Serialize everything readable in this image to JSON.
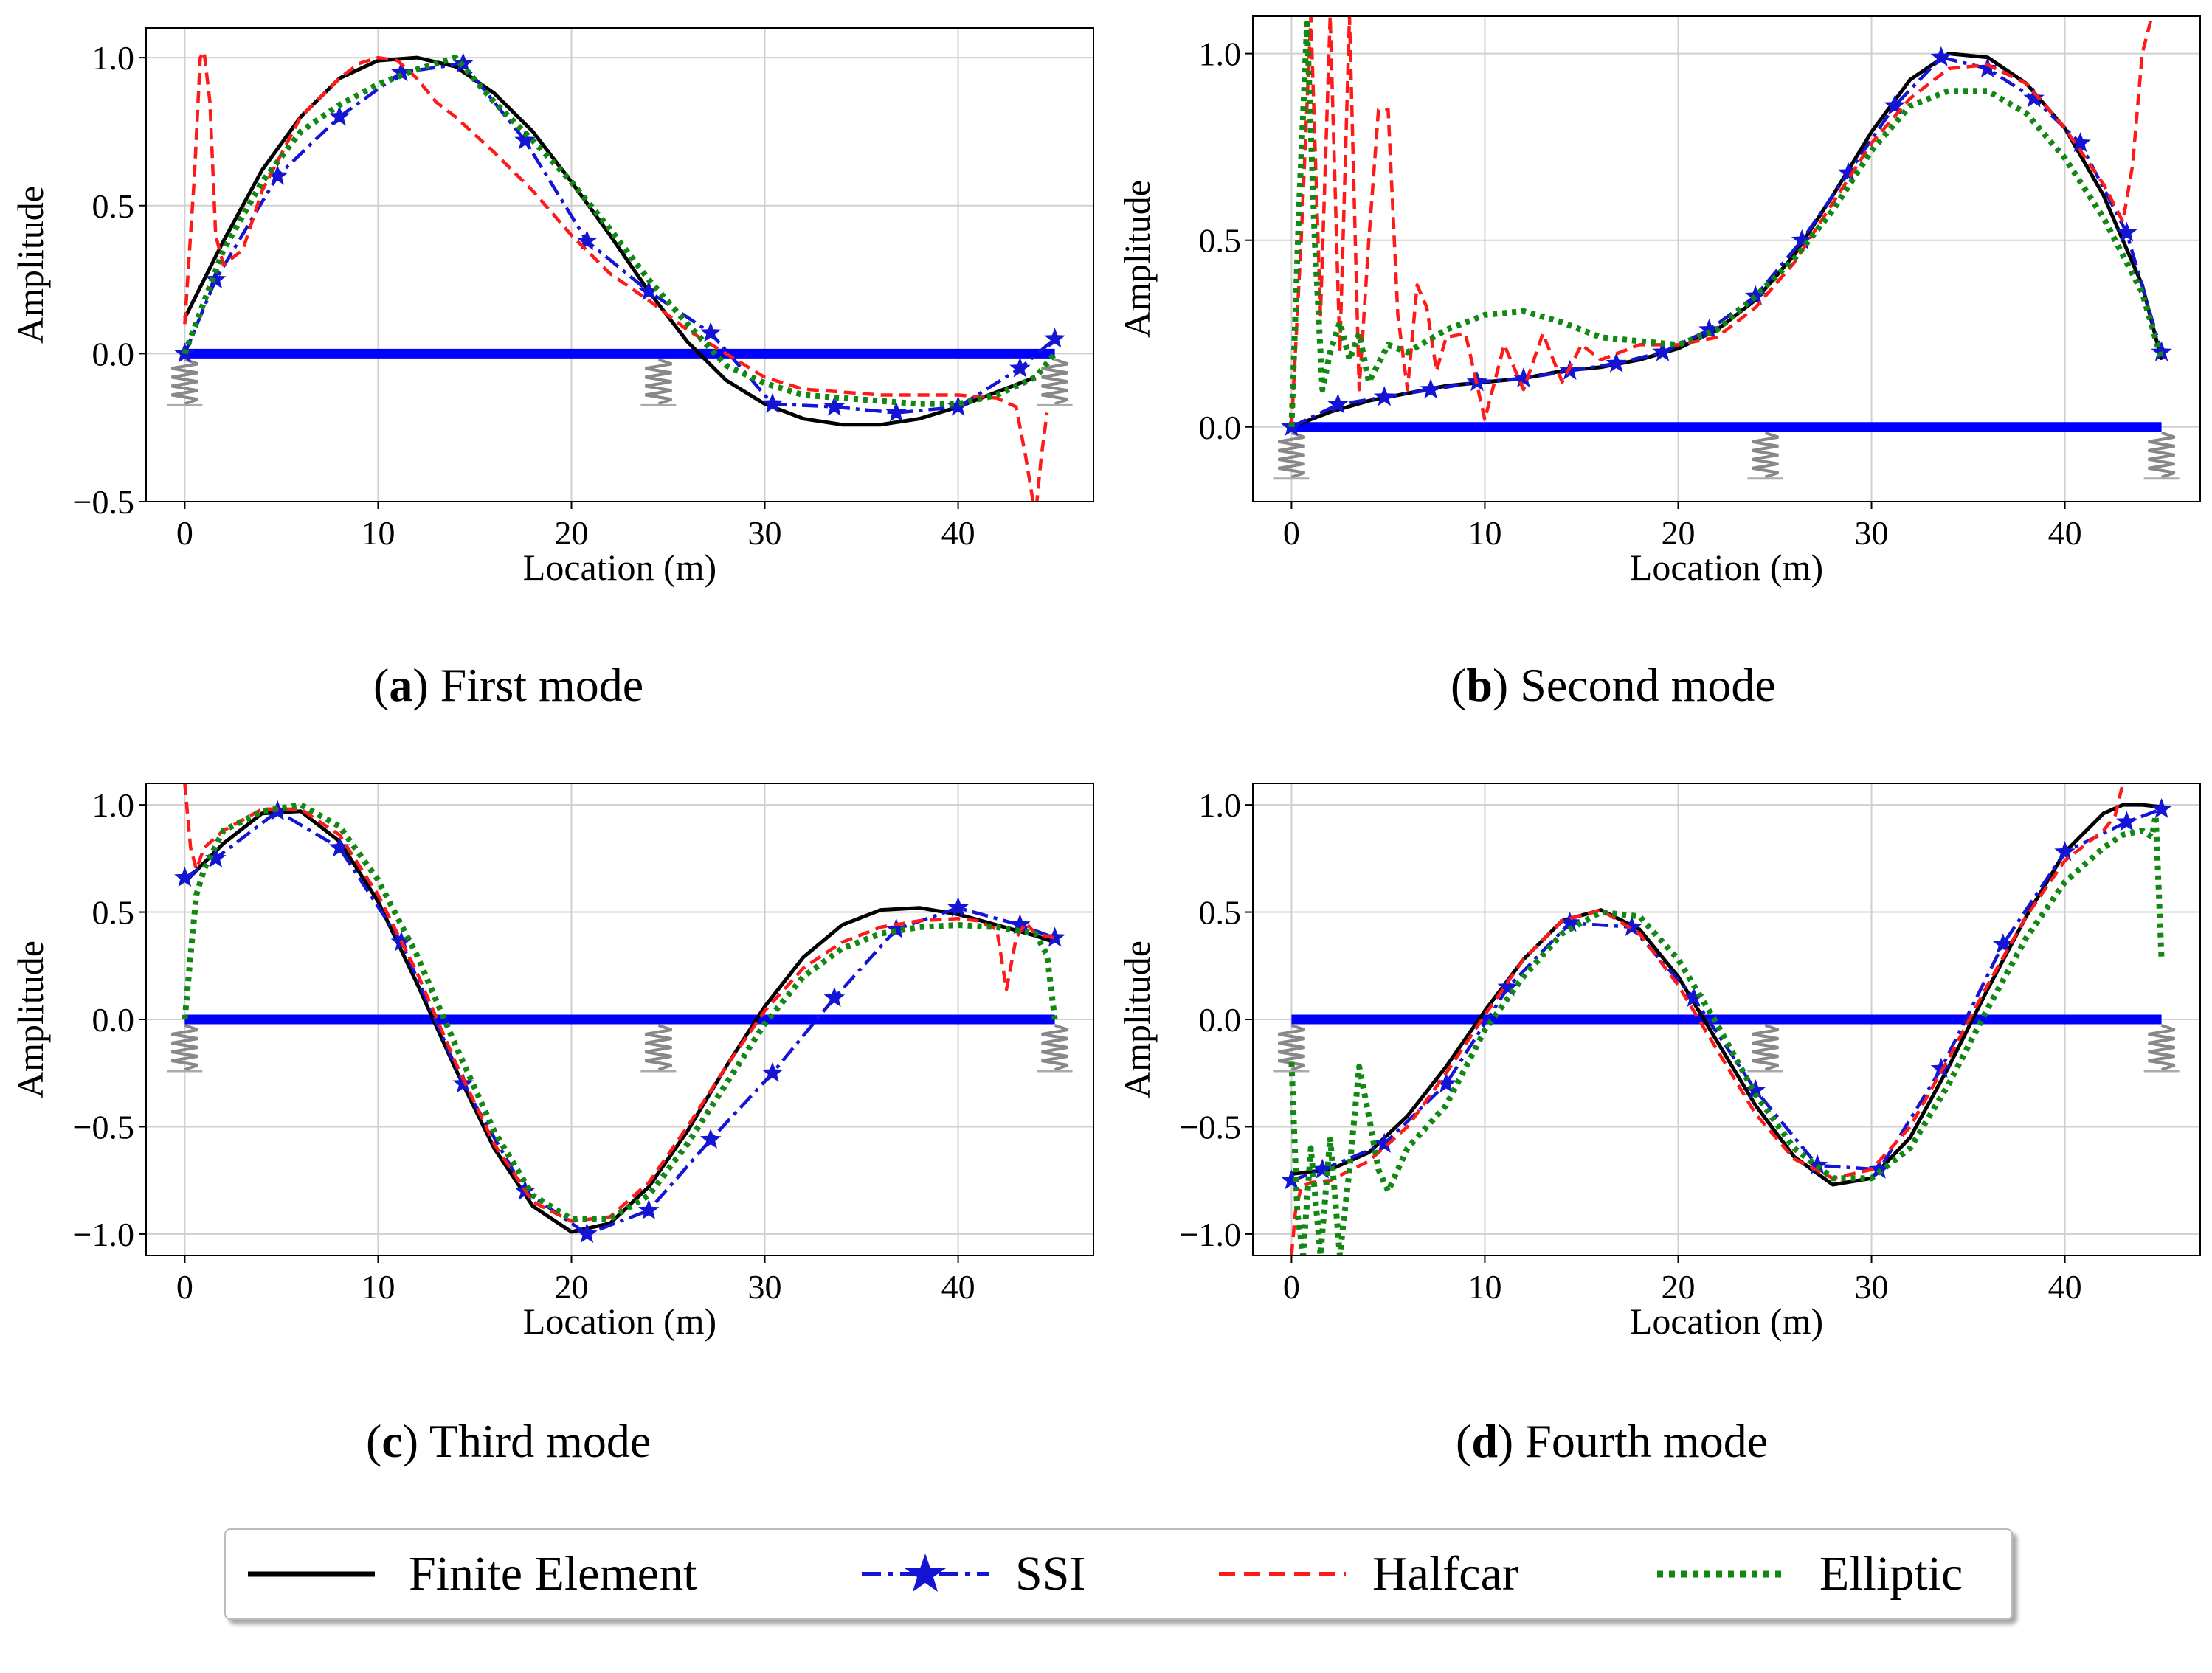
{
  "figure": {
    "legend": [
      {
        "label": "Finite Element",
        "color": "#000000",
        "style": "solid"
      },
      {
        "label": "SSI",
        "color": "#1414d4",
        "style": "dashdot-star"
      },
      {
        "label": "Halfcar",
        "color": "#ff1a1a",
        "style": "dashed"
      },
      {
        "label": "Elliptic",
        "color": "#118811",
        "style": "dotted"
      }
    ],
    "colors": {
      "beam": "#0000ff",
      "grid": "#d0d0d0",
      "spring": "#888888"
    }
  },
  "chart_data": [
    {
      "type": "line",
      "caption_letter": "a",
      "caption_text": "First mode",
      "xlabel": "Location (m)",
      "ylabel": "Amplitude",
      "xlim": [
        -2,
        47
      ],
      "ylim": [
        -0.5,
        1.1
      ],
      "xticks": [
        0,
        10,
        20,
        30,
        40
      ],
      "yticks": [
        -0.5,
        0.0,
        0.5,
        1.0
      ],
      "xtick_labels": [
        "0",
        "10",
        "20",
        "30",
        "40"
      ],
      "ytick_labels": [
        "−0.5",
        "0.0",
        "0.5",
        "1.0"
      ],
      "beam": [
        0,
        45
      ],
      "supports": [
        0,
        24.5,
        45
      ],
      "series": [
        {
          "name": "Finite Element",
          "x": [
            0,
            2,
            4,
            6,
            8,
            10,
            12,
            14,
            16,
            18,
            20,
            22,
            24,
            26,
            28,
            30,
            32,
            34,
            36,
            38,
            40,
            42,
            44
          ],
          "values": [
            0.12,
            0.38,
            0.62,
            0.8,
            0.93,
            0.99,
            1.0,
            0.97,
            0.88,
            0.75,
            0.58,
            0.4,
            0.21,
            0.04,
            -0.09,
            -0.17,
            -0.22,
            -0.24,
            -0.24,
            -0.22,
            -0.18,
            -0.13,
            -0.08
          ]
        },
        {
          "name": "SSI",
          "x": [
            0,
            1.6,
            4.8,
            8,
            11.2,
            14.4,
            17.6,
            20.8,
            24,
            27.2,
            30.4,
            33.6,
            36.8,
            40,
            43.2,
            45
          ],
          "values": [
            0.0,
            0.25,
            0.6,
            0.8,
            0.95,
            0.98,
            0.72,
            0.38,
            0.21,
            0.07,
            -0.17,
            -0.18,
            -0.2,
            -0.18,
            -0.05,
            0.05
          ]
        },
        {
          "name": "Halfcar",
          "x": [
            0,
            0.5,
            0.8,
            1.0,
            1.3,
            1.6,
            2,
            3,
            4,
            6,
            8,
            9,
            10,
            11,
            12,
            13,
            14,
            16,
            18,
            20,
            22,
            24,
            26,
            28,
            30,
            32,
            34,
            36,
            38,
            40,
            42,
            43,
            43.5,
            44,
            44.3,
            44.6
          ],
          "values": [
            0.1,
            0.6,
            1.0,
            1.02,
            0.85,
            0.4,
            0.3,
            0.35,
            0.55,
            0.8,
            0.93,
            0.98,
            1.0,
            0.99,
            0.93,
            0.85,
            0.8,
            0.68,
            0.55,
            0.4,
            0.27,
            0.18,
            0.08,
            0.0,
            -0.08,
            -0.12,
            -0.13,
            -0.14,
            -0.14,
            -0.14,
            -0.15,
            -0.18,
            -0.35,
            -0.55,
            -0.35,
            -0.2
          ]
        },
        {
          "name": "Elliptic",
          "x": [
            0,
            2,
            4,
            6,
            8,
            10,
            12,
            14,
            16,
            18,
            20,
            22,
            24,
            26,
            28,
            30,
            32,
            34,
            36,
            38,
            40,
            42,
            44,
            45
          ],
          "values": [
            0.0,
            0.35,
            0.58,
            0.75,
            0.84,
            0.91,
            0.96,
            1.0,
            0.85,
            0.72,
            0.58,
            0.42,
            0.25,
            0.1,
            -0.04,
            -0.1,
            -0.14,
            -0.15,
            -0.16,
            -0.17,
            -0.17,
            -0.14,
            -0.08,
            0.0
          ]
        }
      ]
    },
    {
      "type": "line",
      "caption_letter": "b",
      "caption_text": "Second mode",
      "xlabel": "Location (m)",
      "ylabel": "Amplitude",
      "xlim": [
        -2,
        47
      ],
      "ylim": [
        -0.2,
        1.1
      ],
      "xticks": [
        0,
        10,
        20,
        30,
        40
      ],
      "yticks": [
        0.0,
        0.5,
        1.0
      ],
      "xtick_labels": [
        "0",
        "10",
        "20",
        "30",
        "40"
      ],
      "ytick_labels": [
        "0.0",
        "0.5",
        "1.0"
      ],
      "beam": [
        0,
        45
      ],
      "supports": [
        0,
        24.5,
        45
      ],
      "series": [
        {
          "name": "Finite Element",
          "x": [
            0,
            2,
            4,
            6,
            8,
            10,
            12,
            14,
            16,
            18,
            20,
            22,
            24,
            26,
            28,
            30,
            32,
            34,
            36,
            38,
            40,
            42,
            44,
            45
          ],
          "values": [
            0.0,
            0.04,
            0.07,
            0.09,
            0.11,
            0.12,
            0.13,
            0.15,
            0.16,
            0.18,
            0.21,
            0.26,
            0.34,
            0.46,
            0.62,
            0.79,
            0.93,
            1.0,
            0.99,
            0.92,
            0.8,
            0.62,
            0.38,
            0.18
          ]
        },
        {
          "name": "SSI",
          "x": [
            0,
            2.4,
            4.8,
            7.2,
            9.6,
            12,
            14.4,
            16.8,
            19.2,
            21.6,
            24,
            26.4,
            28.8,
            31.2,
            33.6,
            36,
            38.4,
            40.8,
            43.2,
            45
          ],
          "values": [
            0.0,
            0.06,
            0.08,
            0.1,
            0.12,
            0.13,
            0.15,
            0.17,
            0.2,
            0.26,
            0.35,
            0.5,
            0.68,
            0.86,
            0.99,
            0.96,
            0.88,
            0.76,
            0.52,
            0.2
          ]
        },
        {
          "name": "Halfcar",
          "x": [
            0,
            0.5,
            1,
            1.5,
            2,
            2.5,
            3,
            3.5,
            4,
            4.5,
            5,
            5.5,
            6,
            6.5,
            7,
            7.5,
            8,
            9,
            10,
            11,
            12,
            13,
            14,
            15,
            16,
            18,
            20,
            22,
            24,
            26,
            28,
            30,
            32,
            34,
            36,
            38,
            40,
            42,
            43,
            43.5,
            44,
            44.5
          ],
          "values": [
            0.0,
            0.5,
            1.1,
            0.3,
            1.1,
            0.2,
            1.1,
            0.1,
            0.5,
            0.85,
            0.85,
            0.3,
            0.1,
            0.38,
            0.32,
            0.15,
            0.24,
            0.25,
            0.02,
            0.22,
            0.1,
            0.25,
            0.12,
            0.22,
            0.18,
            0.22,
            0.22,
            0.24,
            0.32,
            0.44,
            0.6,
            0.76,
            0.88,
            0.96,
            0.97,
            0.92,
            0.8,
            0.65,
            0.55,
            0.7,
            1.0,
            1.1
          ]
        },
        {
          "name": "Elliptic",
          "x": [
            0,
            0.4,
            0.8,
            1.2,
            1.6,
            2,
            2.5,
            3,
            3.5,
            4,
            5,
            6,
            8,
            10,
            12,
            14,
            16,
            18,
            20,
            22,
            24,
            26,
            28,
            30,
            32,
            34,
            36,
            38,
            40,
            42,
            44,
            45
          ],
          "values": [
            0.0,
            0.6,
            1.08,
            0.5,
            0.1,
            0.2,
            0.28,
            0.18,
            0.25,
            0.12,
            0.22,
            0.2,
            0.26,
            0.3,
            0.31,
            0.28,
            0.24,
            0.23,
            0.22,
            0.26,
            0.35,
            0.45,
            0.58,
            0.74,
            0.86,
            0.9,
            0.9,
            0.84,
            0.72,
            0.56,
            0.36,
            0.18
          ]
        }
      ]
    },
    {
      "type": "line",
      "caption_letter": "c",
      "caption_text": "Third mode",
      "xlabel": "Location (m)",
      "ylabel": "Amplitude",
      "xlim": [
        -2,
        47
      ],
      "ylim": [
        -1.1,
        1.1
      ],
      "xticks": [
        0,
        10,
        20,
        30,
        40
      ],
      "yticks": [
        -1.0,
        -0.5,
        0.0,
        0.5,
        1.0
      ],
      "xtick_labels": [
        "0",
        "10",
        "20",
        "30",
        "40"
      ],
      "ytick_labels": [
        "−1.0",
        "−0.5",
        "0.0",
        "0.5",
        "1.0"
      ],
      "beam": [
        0,
        45
      ],
      "supports": [
        0,
        24.5,
        45
      ],
      "series": [
        {
          "name": "Finite Element",
          "x": [
            0,
            2,
            4,
            6,
            8,
            10,
            12,
            14,
            16,
            18,
            20,
            22,
            24,
            26,
            28,
            30,
            32,
            34,
            36,
            38,
            40,
            42,
            44,
            45
          ],
          "values": [
            0.64,
            0.82,
            0.96,
            0.97,
            0.83,
            0.55,
            0.17,
            -0.23,
            -0.6,
            -0.87,
            -0.99,
            -0.95,
            -0.78,
            -0.52,
            -0.22,
            0.06,
            0.29,
            0.44,
            0.51,
            0.52,
            0.49,
            0.44,
            0.39,
            0.36
          ]
        },
        {
          "name": "SSI",
          "x": [
            0,
            1.6,
            4.8,
            8,
            11.2,
            14.4,
            17.6,
            20.8,
            24,
            27.2,
            30.4,
            33.6,
            36.8,
            40,
            43.2,
            45
          ],
          "values": [
            0.66,
            0.75,
            0.97,
            0.8,
            0.36,
            -0.3,
            -0.8,
            -1.0,
            -0.89,
            -0.56,
            -0.25,
            0.1,
            0.42,
            0.52,
            0.44,
            0.38
          ]
        },
        {
          "name": "Halfcar",
          "x": [
            0,
            0.3,
            0.6,
            1,
            2,
            4,
            6,
            8,
            10,
            12,
            14,
            16,
            18,
            20,
            22,
            24,
            26,
            28,
            30,
            32,
            34,
            36,
            38,
            40,
            41,
            42,
            42.5,
            43,
            43.5,
            44,
            45
          ],
          "values": [
            1.1,
            0.8,
            0.7,
            0.8,
            0.88,
            0.98,
            0.98,
            0.86,
            0.58,
            0.22,
            -0.2,
            -0.58,
            -0.85,
            -0.94,
            -0.92,
            -0.76,
            -0.5,
            -0.22,
            0.04,
            0.24,
            0.36,
            0.43,
            0.46,
            0.47,
            0.46,
            0.42,
            0.14,
            0.38,
            0.45,
            0.4,
            0.38
          ]
        },
        {
          "name": "Elliptic",
          "x": [
            0,
            0.3,
            0.6,
            1,
            2,
            4,
            6,
            8,
            10,
            12,
            14,
            16,
            18,
            20,
            22,
            24,
            26,
            28,
            30,
            32,
            34,
            36,
            38,
            40,
            42,
            44,
            44.6,
            45
          ],
          "values": [
            0.0,
            0.3,
            0.58,
            0.7,
            0.88,
            0.97,
            1.0,
            0.9,
            0.65,
            0.3,
            -0.12,
            -0.52,
            -0.82,
            -0.93,
            -0.93,
            -0.82,
            -0.58,
            -0.3,
            -0.02,
            0.2,
            0.33,
            0.4,
            0.43,
            0.44,
            0.43,
            0.4,
            0.3,
            0.0
          ]
        }
      ]
    },
    {
      "type": "line",
      "caption_letter": "d",
      "caption_text": "Fourth mode",
      "xlabel": "Location (m)",
      "ylabel": "Amplitude",
      "xlim": [
        -2,
        47
      ],
      "ylim": [
        -1.1,
        1.1
      ],
      "xticks": [
        0,
        10,
        20,
        30,
        40
      ],
      "yticks": [
        -1.0,
        -0.5,
        0.0,
        0.5,
        1.0
      ],
      "xtick_labels": [
        "0",
        "10",
        "20",
        "30",
        "40"
      ],
      "ytick_labels": [
        "−1.0",
        "−0.5",
        "0.0",
        "0.5",
        "1.0"
      ],
      "beam": [
        0,
        45
      ],
      "supports": [
        0,
        24.5,
        45
      ],
      "series": [
        {
          "name": "Finite Element",
          "x": [
            0,
            2,
            4,
            6,
            8,
            10,
            12,
            14,
            16,
            18,
            20,
            22,
            24,
            26,
            28,
            30,
            32,
            34,
            36,
            38,
            40,
            42,
            43,
            44,
            45
          ],
          "values": [
            -0.72,
            -0.7,
            -0.62,
            -0.45,
            -0.22,
            0.04,
            0.28,
            0.46,
            0.51,
            0.42,
            0.2,
            -0.1,
            -0.4,
            -0.64,
            -0.77,
            -0.74,
            -0.55,
            -0.22,
            0.14,
            0.48,
            0.78,
            0.96,
            1.0,
            1.0,
            0.99
          ]
        },
        {
          "name": "SSI",
          "x": [
            0,
            1.6,
            4.8,
            8,
            11.2,
            14.4,
            17.6,
            20.8,
            24,
            27.2,
            30.4,
            33.6,
            36.8,
            40,
            43.2,
            45
          ],
          "values": [
            -0.75,
            -0.7,
            -0.58,
            -0.3,
            0.15,
            0.45,
            0.43,
            0.1,
            -0.33,
            -0.68,
            -0.7,
            -0.23,
            0.35,
            0.78,
            0.92,
            0.98
          ]
        },
        {
          "name": "Halfcar",
          "x": [
            0,
            0.2,
            0.5,
            1,
            2,
            4,
            6,
            8,
            10,
            12,
            14,
            16,
            18,
            20,
            22,
            24,
            26,
            28,
            30,
            32,
            34,
            36,
            38,
            40,
            42,
            42.6,
            43
          ],
          "values": [
            -1.1,
            -0.9,
            -0.78,
            -0.76,
            -0.75,
            -0.66,
            -0.5,
            -0.25,
            0.02,
            0.28,
            0.46,
            0.51,
            0.4,
            0.16,
            -0.14,
            -0.44,
            -0.65,
            -0.74,
            -0.7,
            -0.5,
            -0.18,
            0.16,
            0.48,
            0.74,
            0.88,
            0.95,
            1.1
          ]
        },
        {
          "name": "Elliptic",
          "x": [
            0,
            0.3,
            0.6,
            1,
            1.5,
            2,
            2.5,
            3,
            3.5,
            4,
            4.5,
            5,
            6,
            8,
            10,
            12,
            14,
            16,
            18,
            20,
            22,
            24,
            26,
            28,
            30,
            32,
            34,
            36,
            38,
            40,
            42,
            43,
            44,
            44.5,
            44.7,
            45
          ],
          "values": [
            -0.2,
            -0.9,
            -1.1,
            -0.6,
            -1.1,
            -0.55,
            -1.1,
            -0.7,
            -0.22,
            -0.45,
            -0.7,
            -0.8,
            -0.6,
            -0.4,
            -0.05,
            0.2,
            0.4,
            0.5,
            0.48,
            0.28,
            -0.02,
            -0.35,
            -0.6,
            -0.74,
            -0.74,
            -0.6,
            -0.3,
            0.05,
            0.38,
            0.64,
            0.8,
            0.86,
            0.88,
            0.85,
            0.95,
            0.28
          ]
        }
      ]
    }
  ]
}
